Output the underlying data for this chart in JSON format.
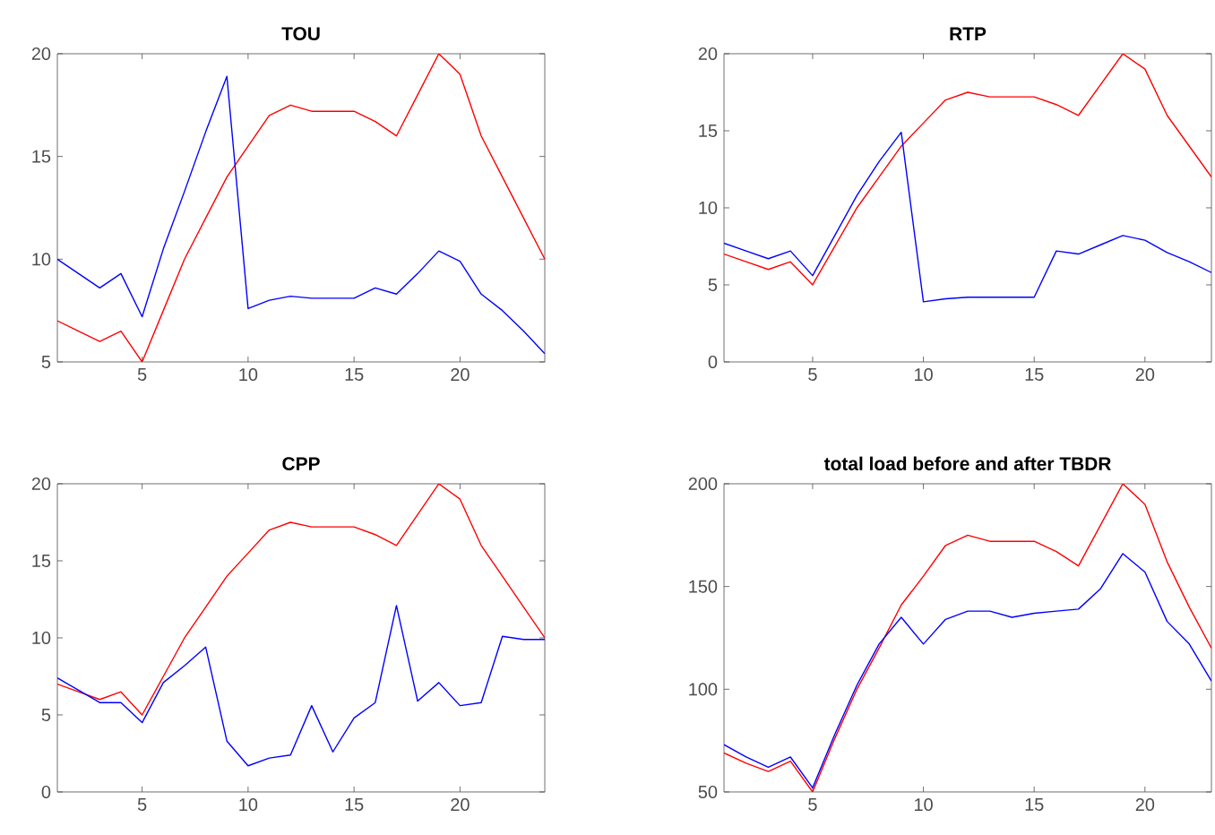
{
  "chart_data": [
    {
      "type": "line",
      "title": "TOU",
      "x": [
        1,
        2,
        3,
        4,
        5,
        6,
        7,
        8,
        9,
        10,
        11,
        12,
        13,
        14,
        15,
        16,
        17,
        18,
        19,
        20,
        21,
        22,
        23,
        24
      ],
      "xlim": [
        1,
        24
      ],
      "xticks": [
        5,
        10,
        15,
        20
      ],
      "ylim": [
        5,
        20
      ],
      "yticks": [
        5,
        10,
        15,
        20
      ],
      "series": [
        {
          "color": "#ff0000",
          "values": [
            7,
            6.5,
            6,
            6.5,
            5,
            7.5,
            10,
            12,
            14,
            15.5,
            17,
            17.5,
            17.2,
            17.2,
            17.2,
            16.7,
            16,
            18,
            20,
            19,
            16,
            14,
            12,
            10
          ]
        },
        {
          "color": "#0000ff",
          "values": [
            10,
            9.3,
            8.6,
            9.3,
            7.2,
            10.5,
            13.3,
            16.2,
            18.9,
            7.6,
            8,
            8.2,
            8.1,
            8.1,
            8.1,
            8.6,
            8.3,
            9.3,
            10.4,
            9.9,
            8.3,
            7.5,
            6.5,
            5.4
          ]
        }
      ]
    },
    {
      "type": "line",
      "title": "RTP",
      "x": [
        1,
        2,
        3,
        4,
        5,
        6,
        7,
        8,
        9,
        10,
        11,
        12,
        13,
        14,
        15,
        16,
        17,
        18,
        19,
        20,
        21,
        22,
        23
      ],
      "xlim": [
        1,
        23
      ],
      "xticks": [
        5,
        10,
        15,
        20
      ],
      "ylim": [
        0,
        20
      ],
      "yticks": [
        0,
        5,
        10,
        15,
        20
      ],
      "series": [
        {
          "color": "#ff0000",
          "values": [
            7,
            6.5,
            6,
            6.5,
            5,
            7.5,
            10,
            12,
            14,
            15.5,
            17,
            17.5,
            17.2,
            17.2,
            17.2,
            16.7,
            16,
            18,
            20,
            19,
            16,
            14,
            12
          ]
        },
        {
          "color": "#0000ff",
          "values": [
            7.7,
            7.2,
            6.7,
            7.2,
            5.6,
            8.2,
            10.8,
            13,
            14.9,
            3.9,
            4.1,
            4.2,
            4.2,
            4.2,
            4.2,
            7.2,
            7,
            7.6,
            8.2,
            7.9,
            7.1,
            6.5,
            5.8
          ]
        }
      ]
    },
    {
      "type": "line",
      "title": "CPP",
      "x": [
        1,
        2,
        3,
        4,
        5,
        6,
        7,
        8,
        9,
        10,
        11,
        12,
        13,
        14,
        15,
        16,
        17,
        18,
        19,
        20,
        21,
        22,
        23,
        24
      ],
      "xlim": [
        1,
        24
      ],
      "xticks": [
        5,
        10,
        15,
        20
      ],
      "ylim": [
        0,
        20
      ],
      "yticks": [
        0,
        5,
        10,
        15,
        20
      ],
      "series": [
        {
          "color": "#ff0000",
          "values": [
            7,
            6.5,
            6,
            6.5,
            5,
            7.5,
            10,
            12,
            14,
            15.5,
            17,
            17.5,
            17.2,
            17.2,
            17.2,
            16.7,
            16,
            18,
            20,
            19,
            16,
            14,
            12,
            10
          ]
        },
        {
          "color": "#0000ff",
          "values": [
            7.4,
            6.6,
            5.8,
            5.8,
            4.5,
            7.1,
            8.2,
            9.4,
            3.3,
            1.7,
            2.2,
            2.4,
            5.6,
            2.6,
            4.8,
            5.8,
            12.1,
            5.9,
            7.1,
            5.6,
            5.8,
            10.1,
            9.9,
            9.9
          ]
        }
      ]
    },
    {
      "type": "line",
      "title": "total load before and after TBDR",
      "x": [
        1,
        2,
        3,
        4,
        5,
        6,
        7,
        8,
        9,
        10,
        11,
        12,
        13,
        14,
        15,
        16,
        17,
        18,
        19,
        20,
        21,
        22,
        23
      ],
      "xlim": [
        1,
        23
      ],
      "xticks": [
        5,
        10,
        15,
        20
      ],
      "ylim": [
        50,
        200
      ],
      "yticks": [
        50,
        100,
        150,
        200
      ],
      "series": [
        {
          "color": "#ff0000",
          "values": [
            69,
            64,
            60,
            65,
            50,
            76,
            100,
            120,
            141,
            155,
            170,
            175,
            172,
            172,
            172,
            167,
            160,
            180,
            200,
            190,
            162,
            140,
            120
          ]
        },
        {
          "color": "#0000ff",
          "values": [
            73,
            67,
            62,
            67,
            52,
            78,
            102,
            122,
            135,
            122,
            134,
            138,
            138,
            135,
            137,
            138,
            139,
            149,
            166,
            157,
            133,
            122,
            104
          ]
        }
      ]
    }
  ]
}
